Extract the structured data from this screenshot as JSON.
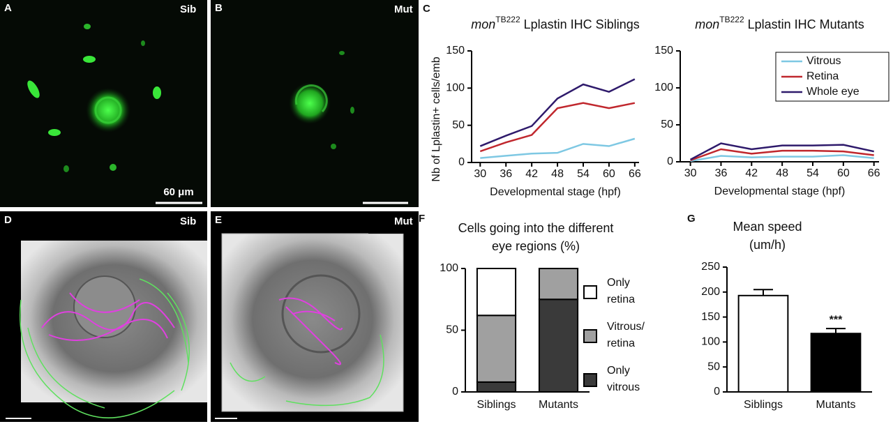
{
  "panels": [
    {
      "label": "A",
      "tag": "Sib",
      "scale_bar": "60 μm"
    },
    {
      "label": "B",
      "tag": "Mut"
    },
    {
      "label": "D",
      "tag": "Sib"
    },
    {
      "label": "E",
      "tag": "Mut"
    }
  ],
  "chart_data": [
    {
      "type": "line",
      "panel": "C",
      "title": {
        "italic": "mon",
        "superscript": "TB222",
        "text": " Lplastin IHC Siblings"
      },
      "ylabel": "Nb of Lplastin+ cells/emb",
      "xlabel": "Developmental stage (hpf)",
      "x": [
        30,
        36,
        42,
        48,
        54,
        60,
        66
      ],
      "series": [
        {
          "name": "Vitrous",
          "color": "#7ec8e3",
          "values": [
            6,
            9,
            12,
            13,
            25,
            22,
            32
          ]
        },
        {
          "name": "Retina",
          "color": "#c0272d",
          "values": [
            15,
            27,
            37,
            73,
            80,
            73,
            80
          ]
        },
        {
          "name": "Whole eye",
          "color": "#2e1a6b",
          "values": [
            22,
            36,
            49,
            86,
            105,
            95,
            112
          ]
        }
      ],
      "xlim": [
        28,
        67
      ],
      "ylim": [
        0,
        150
      ],
      "xticks": [
        30,
        36,
        42,
        48,
        54,
        60,
        66
      ],
      "yticks": [
        0,
        50,
        100,
        150
      ],
      "legend": false
    },
    {
      "type": "line",
      "title": {
        "italic": "mon",
        "superscript": "TB222",
        "text": " Lplastin IHC Mutants"
      },
      "xlabel": "Developmental stage (hpf)",
      "x": [
        30,
        36,
        42,
        48,
        54,
        60,
        66
      ],
      "series": [
        {
          "name": "Vitrous",
          "color": "#7ec8e3",
          "values": [
            1,
            8,
            6,
            7,
            7,
            9,
            5
          ]
        },
        {
          "name": "Retina",
          "color": "#c0272d",
          "values": [
            2,
            17,
            11,
            15,
            15,
            14,
            9
          ]
        },
        {
          "name": "Whole eye",
          "color": "#2e1a6b",
          "values": [
            3,
            25,
            17,
            22,
            22,
            23,
            14
          ]
        }
      ],
      "xlim": [
        28,
        67
      ],
      "ylim": [
        0,
        150
      ],
      "xticks": [
        30,
        36,
        42,
        48,
        54,
        60,
        66
      ],
      "yticks": [
        0,
        50,
        100,
        150
      ],
      "legend": "upper right"
    },
    {
      "type": "stacked_bar",
      "panel": "F",
      "title": "Cells going into the different\neye regions (%)",
      "categories": [
        "Siblings",
        "Mutants"
      ],
      "series": [
        {
          "name": "Only\nvitrous",
          "color": "#3a3a3a",
          "values": [
            8,
            75
          ]
        },
        {
          "name": "Vitrous/\nretina",
          "color": "#a0a0a0",
          "values": [
            54,
            25
          ]
        },
        {
          "name": "Only\nretina",
          "color": "#ffffff",
          "values": [
            38,
            0
          ]
        }
      ],
      "ylim": [
        0,
        100
      ],
      "yticks": [
        0,
        50,
        100
      ],
      "legend": "right"
    },
    {
      "type": "bar",
      "panel": "G",
      "title": "Mean speed\n(um/h)",
      "categories": [
        "Siblings",
        "Mutants"
      ],
      "values": [
        193,
        117
      ],
      "errors": [
        12,
        10
      ],
      "colors": [
        "#ffffff",
        "#000000"
      ],
      "annotation": "***",
      "ylim": [
        0,
        250
      ],
      "yticks": [
        0,
        50,
        100,
        150,
        200,
        250
      ]
    }
  ]
}
